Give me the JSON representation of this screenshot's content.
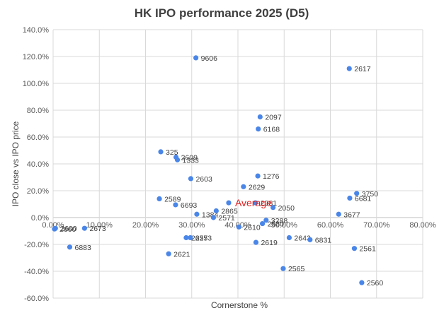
{
  "chart_data": {
    "type": "scatter",
    "title": "HK IPO performance 2025 (D5)",
    "xlabel": "Cornerstone %",
    "ylabel": "IPO close vs IPO price",
    "xlim": [
      0,
      80
    ],
    "ylim": [
      -60,
      140
    ],
    "x_ticks": [
      0,
      10,
      20,
      30,
      40,
      50,
      60,
      70,
      80
    ],
    "y_ticks": [
      -60,
      -40,
      -20,
      0,
      20,
      40,
      60,
      80,
      100,
      120,
      140
    ],
    "x_tick_labels": [
      "0.00%",
      "10.00%",
      "20.00%",
      "30.00%",
      "40.00%",
      "50.00%",
      "60.00%",
      "70.00%",
      "80.00%"
    ],
    "y_tick_labels": [
      "-60.0%",
      "-40.0%",
      "-20.0%",
      "0.0%",
      "20.0%",
      "40.0%",
      "60.0%",
      "80.0%",
      "100.0%",
      "120.0%",
      "140.0%"
    ],
    "grid": true,
    "marker_color": "#4a86e8",
    "highlight_color": "#e02020",
    "points": [
      {
        "label": "9606",
        "x": 30.9,
        "y": 119.0
      },
      {
        "label": "2617",
        "x": 64.1,
        "y": 111.0
      },
      {
        "label": "2097",
        "x": 44.8,
        "y": 75.0
      },
      {
        "label": "6168",
        "x": 44.4,
        "y": 66.0
      },
      {
        "label": "325",
        "x": 23.3,
        "y": 49.0
      },
      {
        "label": "2609",
        "x": 26.6,
        "y": 45.0
      },
      {
        "label": "1333",
        "x": 26.9,
        "y": 43.0
      },
      {
        "label": "1276",
        "x": 44.3,
        "y": 31.0
      },
      {
        "label": "2603",
        "x": 29.8,
        "y": 29.0
      },
      {
        "label": "2629",
        "x": 41.2,
        "y": 23.0
      },
      {
        "label": "3750",
        "x": 65.7,
        "y": 18.0
      },
      {
        "label": "6681",
        "x": 64.2,
        "y": 14.5
      },
      {
        "label": "2589",
        "x": 23.0,
        "y": 14.0
      },
      {
        "label": "6693",
        "x": 26.5,
        "y": 9.5
      },
      {
        "label": "2081",
        "x": 43.8,
        "y": 11.0
      },
      {
        "label": "2050",
        "x": 47.6,
        "y": 7.5
      },
      {
        "label": "1384",
        "x": 31.1,
        "y": 2.5
      },
      {
        "label": "2865",
        "x": 35.3,
        "y": 5.0
      },
      {
        "label": "2571",
        "x": 34.7,
        "y": 0.0
      },
      {
        "label": "3677",
        "x": 61.8,
        "y": 2.5
      },
      {
        "label": "3288",
        "x": 46.1,
        "y": -2.0
      },
      {
        "label": "2580",
        "x": 45.3,
        "y": -4.5
      },
      {
        "label": "2610",
        "x": 40.2,
        "y": -7.0
      },
      {
        "label": "2600",
        "x": 0.5,
        "y": -8.0
      },
      {
        "label": "2660",
        "x": 0.3,
        "y": -8.5
      },
      {
        "label": "2673",
        "x": 6.8,
        "y": -8.0
      },
      {
        "label": "2625",
        "x": 28.8,
        "y": -15.0
      },
      {
        "label": "2573",
        "x": 29.7,
        "y": -15.0
      },
      {
        "label": "2643",
        "x": 51.1,
        "y": -15.0
      },
      {
        "label": "6831",
        "x": 55.6,
        "y": -16.5
      },
      {
        "label": "2619",
        "x": 43.9,
        "y": -18.5
      },
      {
        "label": "6883",
        "x": 3.6,
        "y": -22.0
      },
      {
        "label": "2561",
        "x": 65.2,
        "y": -23.0
      },
      {
        "label": "2621",
        "x": 25.0,
        "y": -27.0
      },
      {
        "label": "2565",
        "x": 49.8,
        "y": -38.0
      },
      {
        "label": "2560",
        "x": 66.8,
        "y": -48.5
      }
    ],
    "average": {
      "label": "Average",
      "x": 38.0,
      "y": 11.0
    }
  }
}
